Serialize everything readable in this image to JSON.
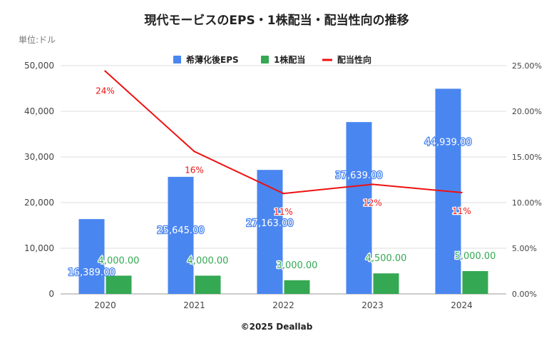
{
  "title": "現代モービスのEPS・1株配当・配当性向の推移",
  "unit_label": "単位:ドル",
  "credit": "©2025 Deallab",
  "colors": {
    "eps": "#4a86f0",
    "dividend": "#34a853",
    "ratio": "#ee1111",
    "grid": "#dddddd"
  },
  "chart_data": {
    "type": "bar",
    "categories": [
      "2020",
      "2021",
      "2022",
      "2023",
      "2024"
    ],
    "series": [
      {
        "name": "希薄化後EPS",
        "axis": "left",
        "values": [
          16389,
          25645,
          27163,
          37639,
          44939
        ],
        "labels": [
          "16,389.00",
          "25,645.00",
          "27,163.00",
          "37,639.00",
          "44,939.00"
        ]
      },
      {
        "name": "1株配当",
        "axis": "left",
        "values": [
          4000,
          4000,
          3000,
          4500,
          5000
        ],
        "labels": [
          "4,000.00",
          "4,000.00",
          "3,000.00",
          "4,500.00",
          "5,000.00"
        ]
      },
      {
        "name": "配当性向",
        "type": "line",
        "axis": "right",
        "values": [
          24.4,
          15.6,
          11.0,
          12.0,
          11.1
        ],
        "labels": [
          "24%",
          "16%",
          "11%",
          "12%",
          "11%"
        ]
      }
    ],
    "ylim_left": [
      0,
      50000
    ],
    "ylim_right": [
      0,
      25
    ],
    "yticks_left": [
      "0",
      "10,000",
      "20,000",
      "30,000",
      "40,000",
      "50,000"
    ],
    "yticks_right": [
      "0.00%",
      "5.00%",
      "10.00%",
      "15.00%",
      "20.00%",
      "25.00%"
    ],
    "grid": true,
    "legend": "top-center"
  }
}
